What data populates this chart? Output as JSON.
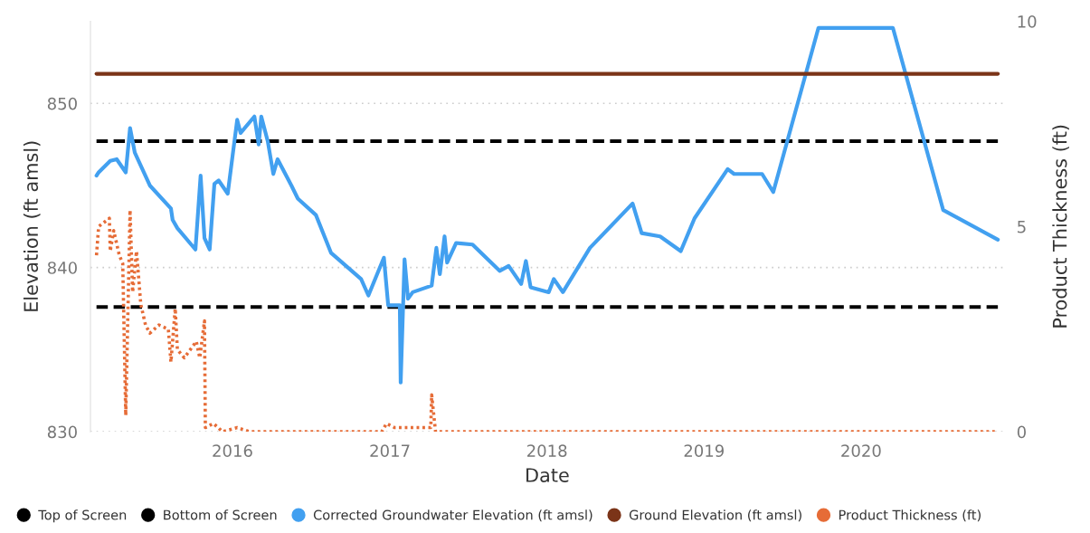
{
  "chart_data": {
    "type": "line",
    "xlabel": "Date",
    "ylabel": "Elevation (ft amsl)",
    "y2label": "Product Thickness (ft)",
    "xlim": [
      "2015-02-05",
      "2020-11-28"
    ],
    "xticks": [
      {
        "value": "2016-01-01",
        "label": "2016"
      },
      {
        "value": "2017-01-01",
        "label": "2017"
      },
      {
        "value": "2018-01-01",
        "label": "2018"
      },
      {
        "value": "2019-01-01",
        "label": "2019"
      },
      {
        "value": "2020-01-01",
        "label": "2020"
      }
    ],
    "ylim": [
      830,
      855
    ],
    "yticks": [
      830,
      840,
      850
    ],
    "y2lim": [
      0,
      10
    ],
    "y2ticks": [
      0,
      5,
      10
    ],
    "grid": "y",
    "legend": "bottom left",
    "marker": "none",
    "series": [
      {
        "name": "Top of Screen",
        "color": "#000000",
        "line_style": "dashed",
        "x": [
          "2015-02-19",
          "2020-11-14"
        ],
        "values": [
          847.7,
          847.7
        ]
      },
      {
        "name": "Bottom of Screen",
        "color": "#000000",
        "line_style": "dashed",
        "x": [
          "2015-02-19",
          "2020-11-14"
        ],
        "values": [
          837.6,
          837.6
        ]
      },
      {
        "name": "Corrected Groundwater Elevation (ft amsl)",
        "color": "#42a0f0",
        "line_style": "solid",
        "x": [
          "2015-02-19",
          "2015-02-24",
          "2015-03-23",
          "2015-04-07",
          "2015-04-28",
          "2015-05-08",
          "2015-05-19",
          "2015-06-23",
          "2015-08-11",
          "2015-08-15",
          "2015-08-26",
          "2015-10-07",
          "2015-10-19",
          "2015-10-28",
          "2015-11-09",
          "2015-11-20",
          "2015-11-30",
          "2015-12-21",
          "2016-01-12",
          "2016-01-20",
          "2016-02-21",
          "2016-03-02",
          "2016-03-08",
          "2016-03-23",
          "2016-04-05",
          "2016-04-15",
          "2016-05-17",
          "2016-06-01",
          "2016-07-13",
          "2016-08-17",
          "2016-10-26",
          "2016-11-12",
          "2016-12-18",
          "2016-12-28",
          "2017-01-24",
          "2017-01-26",
          "2017-02-04",
          "2017-02-12",
          "2017-02-23",
          "2017-04-08",
          "2017-04-19",
          "2017-04-27",
          "2017-05-08",
          "2017-05-14",
          "2017-06-04",
          "2017-07-12",
          "2017-09-13",
          "2017-10-04",
          "2017-11-02",
          "2017-11-13",
          "2017-11-24",
          "2018-01-05",
          "2018-01-17",
          "2018-02-07",
          "2018-04-11",
          "2018-07-19",
          "2018-08-09",
          "2018-09-21",
          "2018-11-08",
          "2018-12-10",
          "2019-02-25",
          "2019-03-12",
          "2019-05-16",
          "2019-06-11",
          "2019-09-24",
          "2020-03-15",
          "2020-07-10",
          "2020-11-14"
        ],
        "values": [
          845.6,
          845.8,
          846.5,
          846.6,
          845.8,
          848.5,
          847.0,
          845.0,
          843.6,
          842.9,
          842.4,
          841.1,
          845.6,
          841.8,
          841.1,
          845.1,
          845.3,
          844.5,
          849.0,
          848.2,
          849.2,
          847.5,
          849.2,
          847.7,
          845.7,
          846.6,
          845.0,
          844.2,
          843.2,
          840.9,
          839.3,
          838.3,
          840.6,
          837.7,
          837.7,
          833.0,
          840.5,
          838.1,
          838.5,
          838.9,
          841.2,
          839.6,
          841.9,
          840.3,
          841.5,
          841.4,
          839.8,
          840.1,
          839.0,
          840.4,
          838.8,
          838.5,
          839.3,
          838.5,
          841.2,
          843.9,
          842.1,
          841.9,
          841.0,
          843.0,
          846.0,
          845.7,
          845.7,
          844.6,
          854.6,
          854.6,
          843.5,
          841.7
        ]
      },
      {
        "name": "Ground Elevation (ft amsl)",
        "color": "#7b3418",
        "line_style": "solid",
        "x": [
          "2015-02-19",
          "2020-11-14"
        ],
        "values": [
          851.8,
          851.8
        ]
      },
      {
        "name": "Product Thickness (ft)",
        "color": "#e66c37",
        "line_style": "dotted",
        "axis": "y2",
        "x": [
          "2015-02-19",
          "2015-02-24",
          "2015-03-21",
          "2015-03-23",
          "2015-03-31",
          "2015-04-13",
          "2015-04-21",
          "2015-04-28",
          "2015-05-08",
          "2015-05-14",
          "2015-05-23",
          "2015-06-02",
          "2015-06-13",
          "2015-06-23",
          "2015-07-14",
          "2015-08-05",
          "2015-08-11",
          "2015-08-21",
          "2015-08-26",
          "2015-09-11",
          "2015-10-09",
          "2015-10-17",
          "2015-10-28",
          "2015-10-30",
          "2015-11-18",
          "2015-12-09",
          "2016-01-12",
          "2016-02-10",
          "2016-12-13",
          "2016-12-24",
          "2017-01-12",
          "2017-04-06",
          "2017-04-08",
          "2017-04-17",
          "2020-11-14"
        ],
        "values": [
          4.3,
          5.0,
          5.2,
          4.4,
          4.9,
          4.3,
          4.1,
          0.4,
          5.4,
          3.4,
          4.4,
          3.1,
          2.6,
          2.4,
          2.6,
          2.5,
          1.7,
          3.0,
          2.0,
          1.8,
          2.2,
          1.8,
          2.7,
          0.1,
          0.2,
          0,
          0.1,
          0,
          0,
          0.2,
          0.1,
          0.1,
          0.9,
          0,
          0
        ]
      }
    ]
  }
}
